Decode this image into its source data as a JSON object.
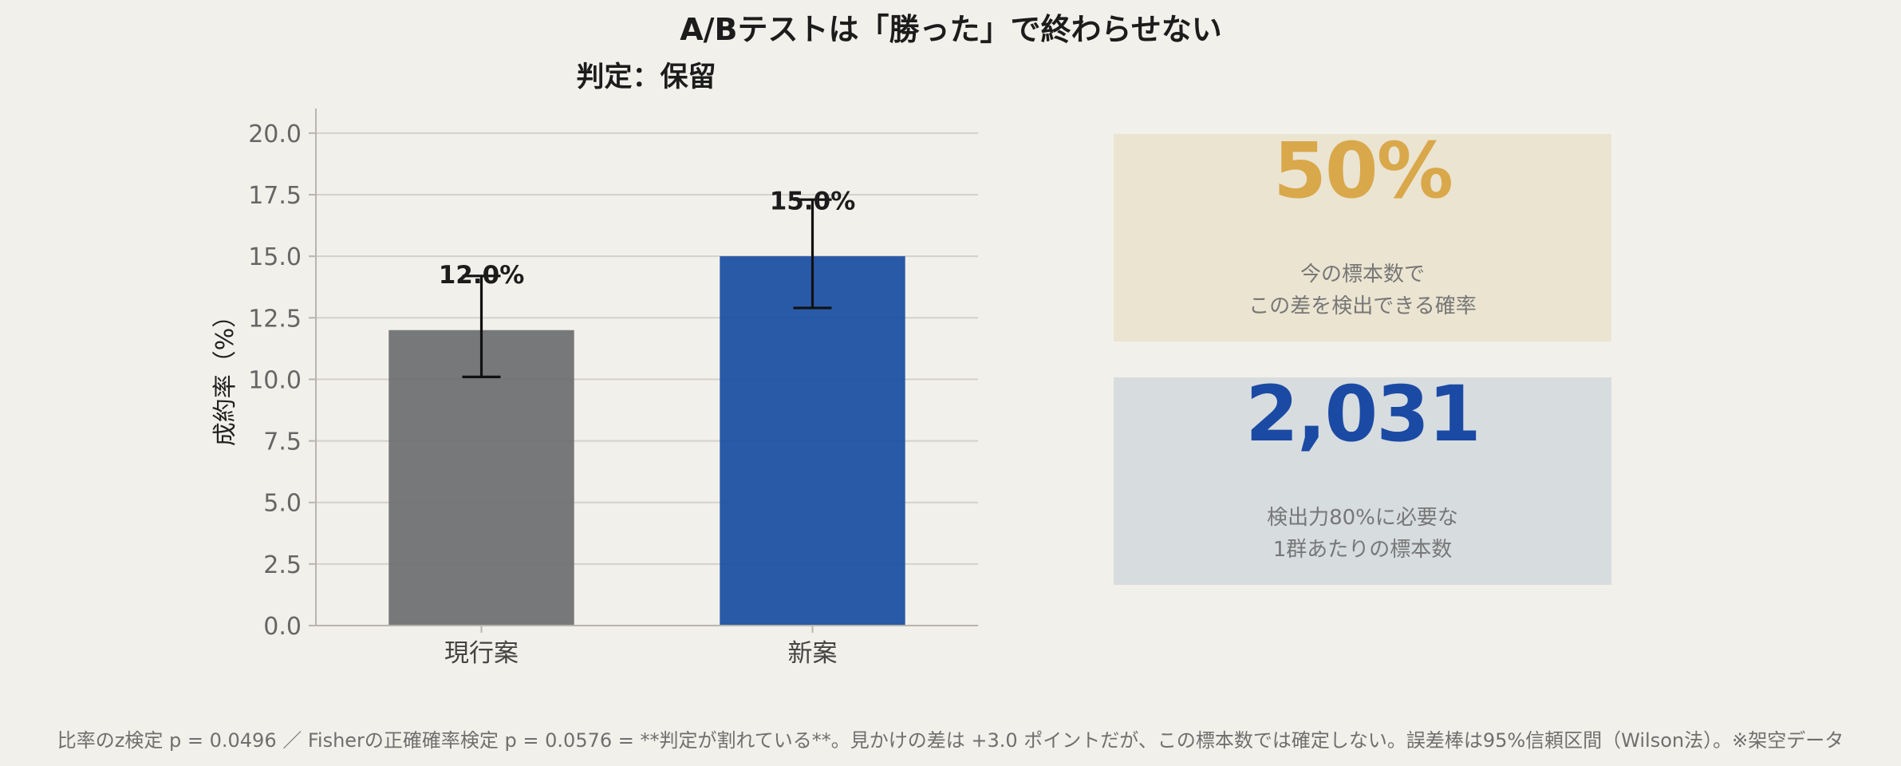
{
  "title": "A/Bテストは「勝った」で終わらせない",
  "chart_data": {
    "type": "bar",
    "title": "判定：保留",
    "ylabel": "成約率（%）",
    "xlabel": "",
    "ylim": [
      0,
      21
    ],
    "yticks": [
      "0.0",
      "2.5",
      "5.0",
      "7.5",
      "10.0",
      "12.5",
      "15.0",
      "17.5",
      "20.0"
    ],
    "grid": true,
    "categories": [
      "現行案",
      "新案"
    ],
    "values": [
      12.0,
      15.0
    ],
    "value_labels": [
      "12.0%",
      "15.0%"
    ],
    "error_low": [
      10.1,
      12.9
    ],
    "error_high": [
      14.2,
      17.3
    ],
    "colors": [
      "#6f7073",
      "#1c50a4"
    ]
  },
  "kpis": [
    {
      "value": "50%",
      "caption": "今の標本数で\nこの差を検出できる確率",
      "value_color": "#d9a84a",
      "bg_color": "#ebe4d1"
    },
    {
      "value": "2,031",
      "caption": "検出力80%に必要な\n1群あたりの標本数",
      "value_color": "#1a4aa4",
      "bg_color": "#d7dcdf"
    }
  ],
  "footnote": "比率のz検定 p = 0.0496 ／ Fisherの正確確率検定 p = 0.0576 = **判定が割れている**。見かけの差は +3.0 ポイントだが、この標本数では確定しない。誤差棒は95%信頼区間（Wilson法）。※架空データ"
}
